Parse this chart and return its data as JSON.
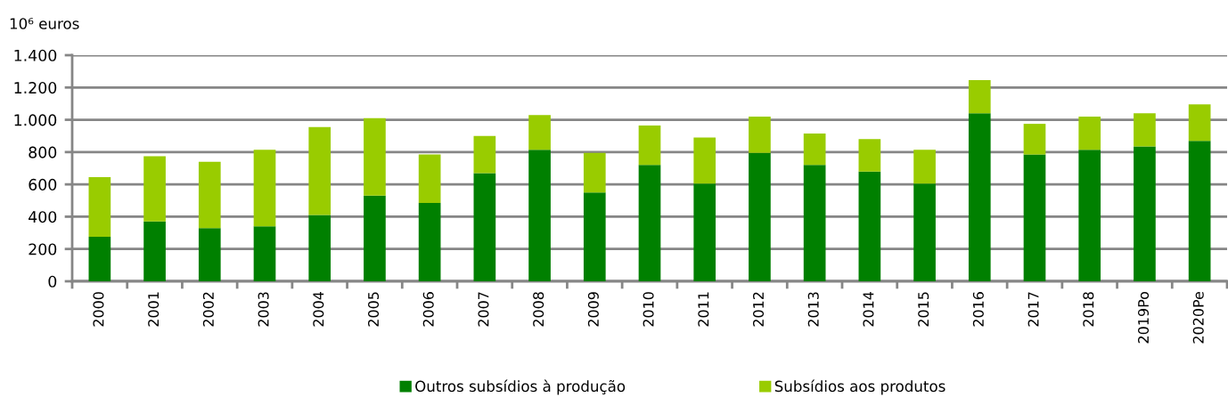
{
  "chart_data": {
    "type": "bar",
    "stacked": true,
    "ylabel": "10⁶ euros",
    "categories": [
      "2000",
      "2001",
      "2002",
      "2003",
      "2004",
      "2005",
      "2006",
      "2007",
      "2008",
      "2009",
      "2010",
      "2011",
      "2012",
      "2013",
      "2014",
      "2015",
      "2016",
      "2017",
      "2018",
      "2019Po",
      "2020Pe"
    ],
    "series": [
      {
        "name": "Outros subsídios à produção",
        "color": "#008000",
        "values": [
          275,
          370,
          330,
          340,
          410,
          530,
          485,
          670,
          815,
          550,
          720,
          605,
          795,
          720,
          680,
          605,
          1040,
          785,
          815,
          835,
          870
        ]
      },
      {
        "name": "Subsídios aos produtos",
        "color": "#99cc00",
        "values": [
          370,
          405,
          410,
          475,
          545,
          480,
          300,
          230,
          215,
          245,
          245,
          285,
          225,
          195,
          200,
          210,
          205,
          190,
          205,
          205,
          225
        ]
      }
    ],
    "ylim": [
      0,
      1400
    ],
    "yticks": [
      0,
      200,
      400,
      600,
      800,
      {
        "value": 1000,
        "label": "1.000"
      },
      {
        "value": 1200,
        "label": "1.200"
      },
      {
        "value": 1400,
        "label": "1.400"
      }
    ],
    "grid": "y",
    "legend": "bottom"
  }
}
